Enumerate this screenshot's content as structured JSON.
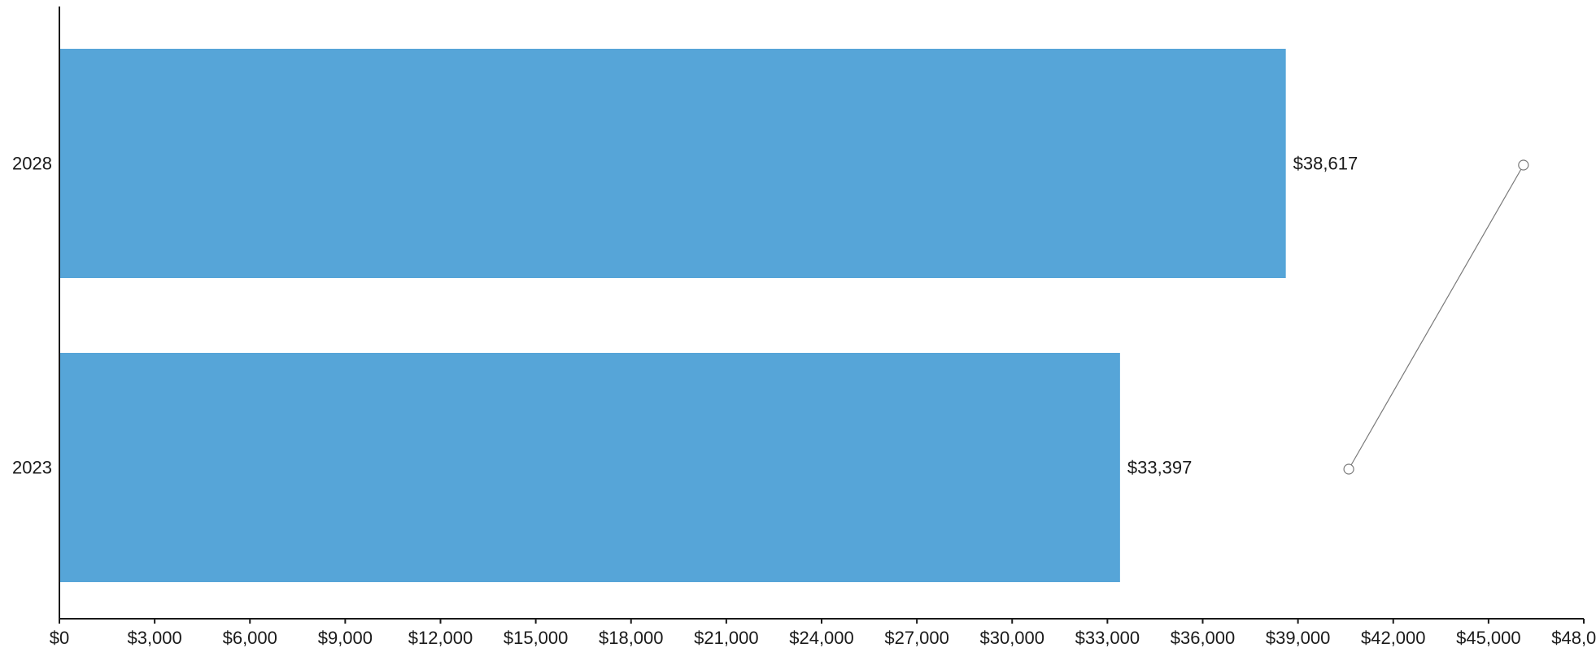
{
  "chart_data": {
    "type": "bar",
    "orientation": "horizontal",
    "categories": [
      "2028",
      "2023"
    ],
    "values": [
      38617,
      33397
    ],
    "value_labels": [
      "$38,617",
      "$33,397"
    ],
    "bar_color": "#56a5d8",
    "xlim": [
      0,
      48000
    ],
    "x_ticks": [
      0,
      3000,
      6000,
      9000,
      12000,
      15000,
      18000,
      21000,
      24000,
      27000,
      30000,
      33000,
      36000,
      39000,
      42000,
      45000,
      48000
    ],
    "x_tick_labels": [
      "$0",
      "$3,000",
      "$6,000",
      "$9,000",
      "$12,000",
      "$15,000",
      "$18,000",
      "$21,000",
      "$24,000",
      "$27,000",
      "$30,000",
      "$33,000",
      "$36,000",
      "$39,000",
      "$42,000",
      "$45,000",
      "$48,000"
    ],
    "grid": false,
    "title": "",
    "xlabel": "",
    "ylabel": "",
    "trend_line": {
      "points": [
        {
          "category": "2023",
          "x": 40600
        },
        {
          "category": "2028",
          "x": 46100
        }
      ],
      "color": "#7a7a7a"
    }
  }
}
